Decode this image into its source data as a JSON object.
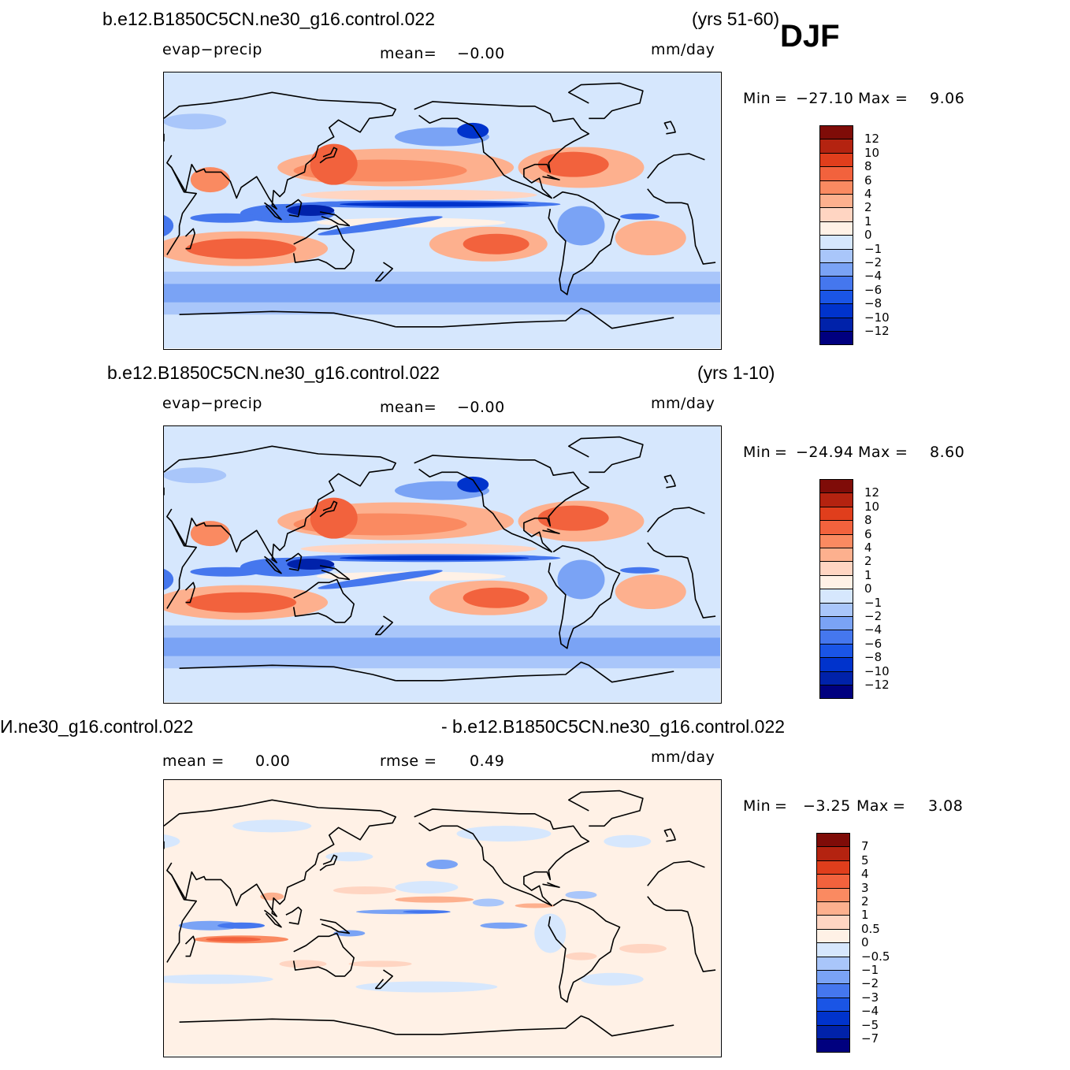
{
  "season": "DJF",
  "colors": {
    "main_scale": [
      "#00007f",
      "#0022aa",
      "#0033cc",
      "#1a55e6",
      "#4577ee",
      "#7aa3f5",
      "#a9c6fa",
      "#d6e7fd",
      "#fff1e6",
      "#ffd5c2",
      "#fdb08e",
      "#fa8a61",
      "#f2623d",
      "#e03e1c",
      "#b42310",
      "#7f0c08"
    ],
    "diff_scale": [
      "#00007f",
      "#0022aa",
      "#0033cc",
      "#1a55e6",
      "#4577ee",
      "#7aa3f5",
      "#a9c6fa",
      "#d6e7fd",
      "#fff1e6",
      "#ffd5c2",
      "#fdb08e",
      "#fa8a61",
      "#f2623d",
      "#e03e1c",
      "#b42310",
      "#7f0c08"
    ],
    "land": "#dde9fb"
  },
  "panels": [
    {
      "title_left": "b.e12.B1850C5CN.ne30_g16.control.022",
      "title_right": "(yrs 51-60)",
      "variable": "evap−precip",
      "mean_label": "mean=",
      "mean_value": "−0.00",
      "units": "mm/day",
      "min_label": "Min",
      "min_value": "−27.10",
      "max_label": "Max",
      "max_value": "9.06",
      "colorbar_labels": [
        "12",
        "10",
        "8",
        "6",
        "4",
        "2",
        "1",
        "0",
        "−1",
        "−2",
        "−4",
        "−6",
        "−8",
        "−10",
        "−12"
      ]
    },
    {
      "title_left": "b.e12.B1850C5CN.ne30_g16.control.022",
      "title_right": "(yrs 1-10)",
      "variable": "evap−precip",
      "mean_label": "mean=",
      "mean_value": "−0.00",
      "units": "mm/day",
      "min_label": "Min",
      "min_value": "−24.94",
      "max_label": "Max",
      "max_value": "8.60",
      "colorbar_labels": [
        "12",
        "10",
        "8",
        "6",
        "4",
        "2",
        "1",
        "0",
        "−1",
        "−2",
        "−4",
        "−6",
        "−8",
        "−10",
        "−12"
      ]
    },
    {
      "title_left": "И.ne30_g16.control.022",
      "title_right": "- b.e12.B1850C5CN.ne30_g16.control.022",
      "mean_label": "mean =",
      "mean_value": "0.00",
      "rmse_label": "rmse =",
      "rmse_value": "0.49",
      "units": "mm/day",
      "min_label": "Min",
      "min_value": "−3.25",
      "max_label": "Max",
      "max_value": "3.08",
      "colorbar_labels": [
        "7",
        "5",
        "4",
        "3",
        "2",
        "1",
        "0.5",
        "0",
        "−0.5",
        "−1",
        "−2",
        "−3",
        "−4",
        "−5",
        "−7"
      ]
    }
  ]
}
